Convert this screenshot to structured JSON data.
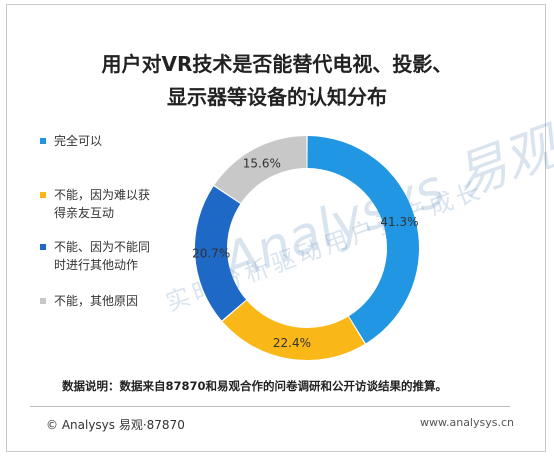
{
  "chart_data": {
    "type": "pie",
    "title": "用户对VR技术是否能替代电视、投影、显示器等设备的认知分布",
    "title_lines": [
      "用户对VR技术是否能替代电视、投影、",
      "显示器等设备的认知分布"
    ],
    "categories": [
      "完全可以",
      "不能，因为难以获得亲友互动",
      "不能、因为不能同时进行其他动作",
      "不能，其他原因"
    ],
    "legend_lines": [
      [
        "完全可以"
      ],
      [
        "不能，因为难以获",
        "得亲友互动"
      ],
      [
        "不能、因为不能同",
        "时进行其他动作"
      ],
      [
        "不能，其他原因"
      ]
    ],
    "values": [
      41.3,
      22.4,
      20.7,
      15.6
    ],
    "labels": [
      "41.3%",
      "22.4%",
      "20.7%",
      "15.6%"
    ],
    "colors": [
      "#2196e3",
      "#f9b817",
      "#1f69c6",
      "#c8c8c8"
    ],
    "legend_position": "left",
    "donut": true
  },
  "watermark": {
    "line1": "Analysys 易观",
    "line2": "实时分析驱动用户资产成长"
  },
  "note": "数据说明：数据来自87870和易观合作的问卷调研和公开访谈结果的推算。",
  "footer": {
    "left": "© Analysys 易观·87870",
    "right": "www.analysys.cn"
  }
}
